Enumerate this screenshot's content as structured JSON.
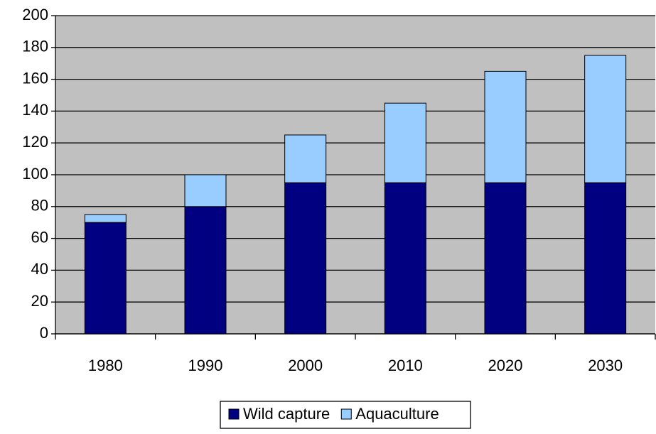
{
  "chart_data": {
    "type": "stacked_bar",
    "categories": [
      "1980",
      "1990",
      "2000",
      "2010",
      "2020",
      "2030"
    ],
    "series": [
      {
        "name": "Wild capture",
        "color": "#000080",
        "values": [
          70,
          80,
          95,
          95,
          95,
          95
        ]
      },
      {
        "name": "Aquaculture",
        "color": "#99ccff",
        "values": [
          5,
          20,
          30,
          50,
          70,
          80
        ]
      }
    ],
    "ylim": [
      0,
      200
    ],
    "yticks": [
      0,
      20,
      40,
      60,
      80,
      100,
      120,
      140,
      160,
      180,
      200
    ],
    "grid": true,
    "plot_background": "#c0c0c0",
    "legend": "bottom"
  }
}
